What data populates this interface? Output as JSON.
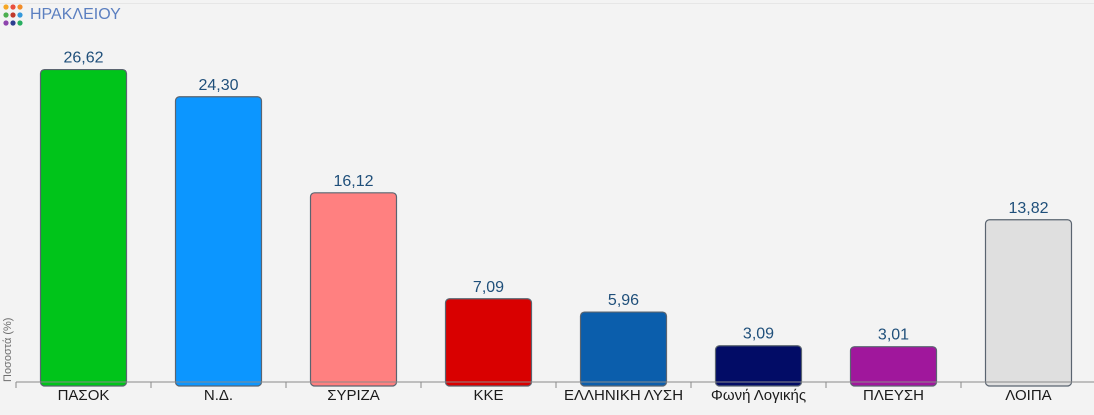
{
  "header": {
    "title": "ΗΡΑΚΛΕΙΟΥ",
    "logo_icon": "colored-dots-logo-icon"
  },
  "chart_data": {
    "type": "bar",
    "title": "ΗΡΑΚΛΕΙΟΥ",
    "ylabel": "Ποσοστά (%)",
    "xlabel": "",
    "ylim": [
      0,
      28.2
    ],
    "grid": false,
    "categories": [
      "ΠΑΣΟΚ",
      "Ν.Δ.",
      "ΣΥΡΙΖΑ",
      "ΚΚΕ",
      "ΕΛΛΗΝΙΚΗ ΛΥΣΗ",
      "Φωνή Λογικής",
      "ΠΛΕΥΣΗ",
      "ΛΟΙΠΑ"
    ],
    "values": [
      26.62,
      24.3,
      16.12,
      7.09,
      5.96,
      3.09,
      3.01,
      13.82
    ],
    "value_labels": [
      "26,62",
      "24,30",
      "16,12",
      "7,09",
      "5,96",
      "3,09",
      "3,01",
      "13,82"
    ],
    "colors": [
      "#00c41a",
      "#0c96ff",
      "#ff8080",
      "#d90000",
      "#0b5eac",
      "#020c66",
      "#a0179c",
      "#dfdfdf"
    ]
  }
}
